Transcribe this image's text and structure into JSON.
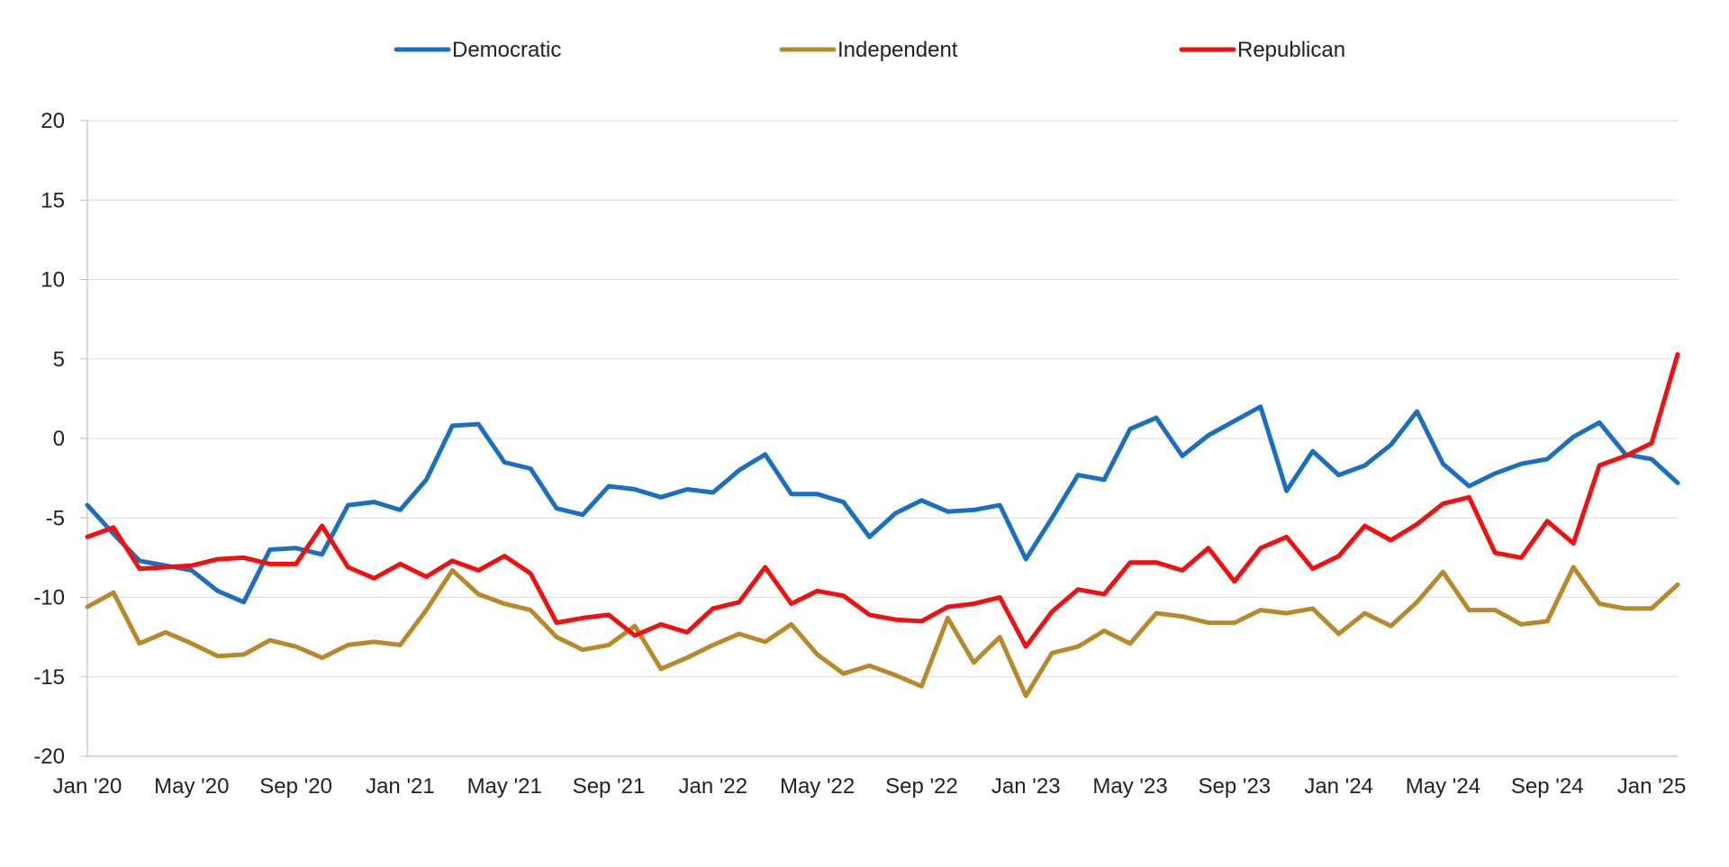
{
  "chart_data": {
    "type": "line",
    "title": "",
    "xlabel": "",
    "ylabel": "",
    "ylim": [
      -20,
      20
    ],
    "yticks": [
      20,
      15,
      10,
      5,
      0,
      -5,
      -10,
      -15,
      -20
    ],
    "yticklabels": [
      "20",
      "15",
      "10",
      "5",
      "0",
      "-5",
      "-10",
      "-15",
      "-20"
    ],
    "xticks": [
      {
        "index": 0,
        "label": "Jan '20"
      },
      {
        "index": 4,
        "label": "May '20"
      },
      {
        "index": 8,
        "label": "Sep '20"
      },
      {
        "index": 12,
        "label": "Jan '21"
      },
      {
        "index": 16,
        "label": "May '21"
      },
      {
        "index": 20,
        "label": "Sep '21"
      },
      {
        "index": 24,
        "label": "Jan '22"
      },
      {
        "index": 28,
        "label": "May '22"
      },
      {
        "index": 32,
        "label": "Sep '22"
      },
      {
        "index": 36,
        "label": "Jan '23"
      },
      {
        "index": 40,
        "label": "May '23"
      },
      {
        "index": 44,
        "label": "Sep '23"
      },
      {
        "index": 48,
        "label": "Jan '24"
      },
      {
        "index": 52,
        "label": "May '24"
      },
      {
        "index": 56,
        "label": "Sep '24"
      },
      {
        "index": 60,
        "label": "Jan '25"
      }
    ],
    "x_start": "Jan '20",
    "x_end": "Jan '25",
    "grid": true,
    "legend_position": "top",
    "series": [
      {
        "name": "Democratic",
        "color": "#1a6fc0",
        "values": [
          -4.2,
          -6.0,
          -7.7,
          -8.0,
          -8.3,
          -9.6,
          -10.3,
          -7.0,
          -6.9,
          -7.3,
          -4.2,
          -4.0,
          -4.5,
          -2.6,
          0.8,
          0.9,
          -1.5,
          -1.9,
          -4.4,
          -4.8,
          -3.0,
          -3.2,
          -3.7,
          -3.2,
          -3.4,
          -2.0,
          -1.0,
          -3.5,
          -3.5,
          -4.0,
          -6.2,
          -4.7,
          -3.9,
          -4.6,
          -4.5,
          -4.2,
          -7.6,
          -5.0,
          -2.3,
          -2.6,
          0.6,
          1.3,
          -1.1,
          0.2,
          1.1,
          2.0,
          -3.3,
          -0.8,
          -2.3,
          -1.7,
          -0.4,
          1.7,
          -1.6,
          -3.0,
          -2.2,
          -1.6,
          -1.3,
          0.1,
          1.0,
          -1.0,
          -1.3,
          -2.8
        ]
      },
      {
        "name": "Independent",
        "color": "#b8892b",
        "values": [
          -10.6,
          -9.7,
          -12.9,
          -12.2,
          -12.9,
          -13.7,
          -13.6,
          -12.7,
          -13.1,
          -13.8,
          -13.0,
          -12.8,
          -13.0,
          -10.8,
          -8.3,
          -9.8,
          -10.4,
          -10.8,
          -12.5,
          -13.3,
          -13.0,
          -11.8,
          -14.5,
          -13.8,
          -13.0,
          -12.3,
          -12.8,
          -11.7,
          -13.6,
          -14.8,
          -14.3,
          -14.9,
          -15.6,
          -11.3,
          -14.1,
          -12.5,
          -16.2,
          -13.5,
          -13.1,
          -12.1,
          -12.9,
          -11.0,
          -11.2,
          -11.6,
          -11.6,
          -10.8,
          -11.0,
          -10.7,
          -12.3,
          -11.0,
          -11.8,
          -10.3,
          -8.4,
          -10.8,
          -10.8,
          -11.7,
          -11.5,
          -8.1,
          -10.4,
          -10.7,
          -10.7,
          -9.2
        ]
      },
      {
        "name": "Republican",
        "color": "#f20f0f",
        "values": [
          -6.2,
          -5.6,
          -8.2,
          -8.1,
          -8.0,
          -7.6,
          -7.5,
          -7.9,
          -7.9,
          -5.5,
          -8.1,
          -8.8,
          -7.9,
          -8.7,
          -7.7,
          -8.3,
          -7.4,
          -8.5,
          -11.6,
          -11.3,
          -11.1,
          -12.4,
          -11.7,
          -12.2,
          -10.7,
          -10.3,
          -8.1,
          -10.4,
          -9.6,
          -9.9,
          -11.1,
          -11.4,
          -11.5,
          -10.6,
          -10.4,
          -10.0,
          -13.1,
          -10.9,
          -9.5,
          -9.8,
          -7.8,
          -7.8,
          -8.3,
          -6.9,
          -9.0,
          -6.9,
          -6.2,
          -8.2,
          -7.4,
          -5.5,
          -6.4,
          -5.4,
          -4.1,
          -3.7,
          -7.2,
          -7.5,
          -5.2,
          -6.6,
          -1.7,
          -1.1,
          -0.3,
          5.3
        ]
      }
    ]
  }
}
